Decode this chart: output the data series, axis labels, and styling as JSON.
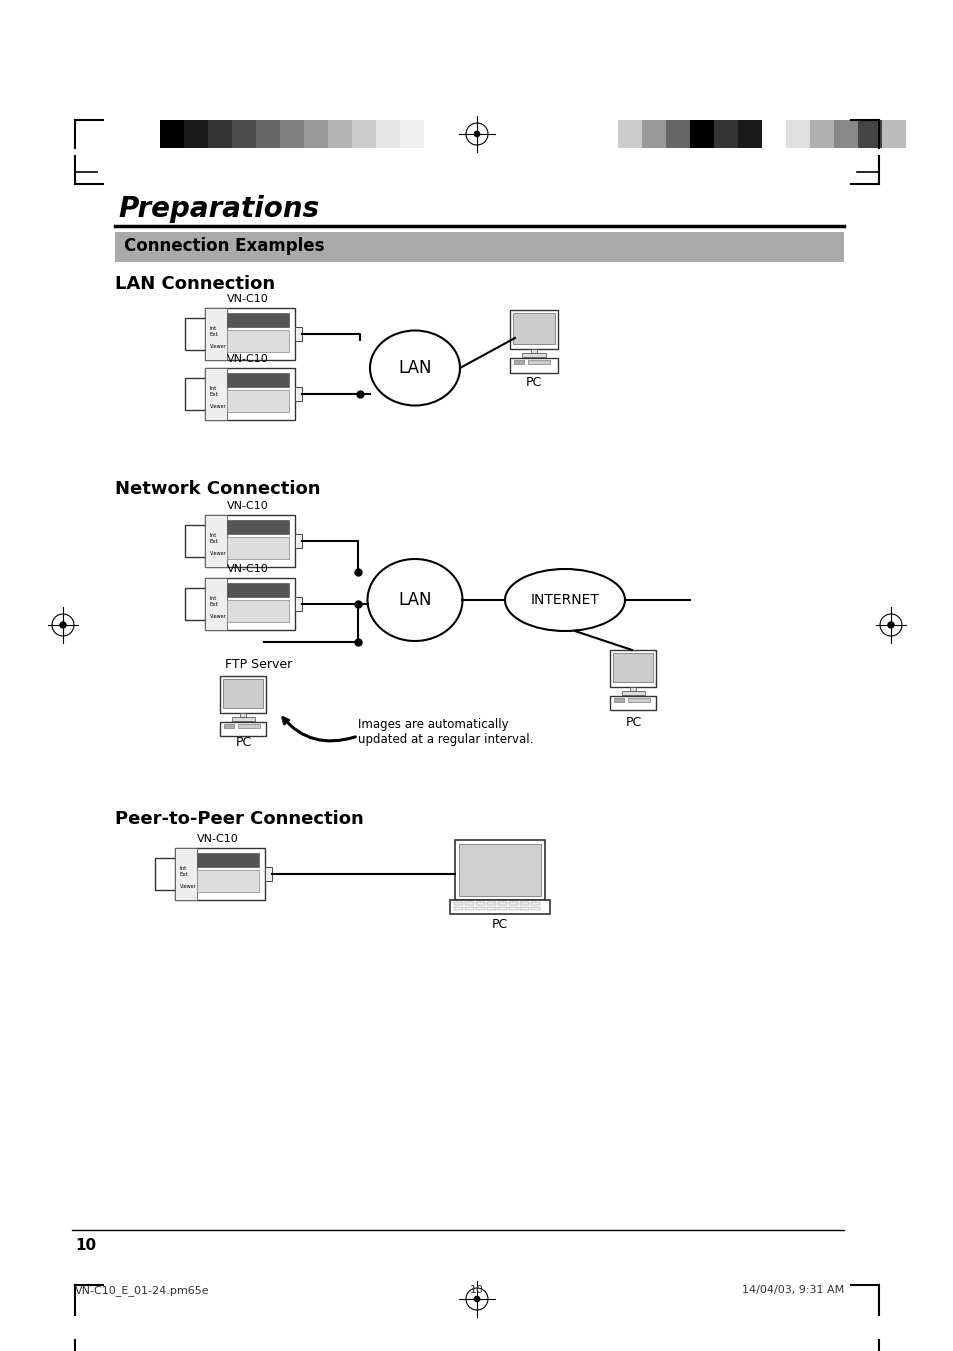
{
  "title": "Preparations",
  "subtitle": "Connection Examples",
  "section1": "LAN Connection",
  "section2": "Network Connection",
  "section3": "Peer-to-Peer Connection",
  "label_vnc10": "VN-C10",
  "label_lan": "LAN",
  "label_internet": "INTERNET",
  "label_pc": "PC",
  "label_ftp": "FTP Server",
  "label_caption": "Images are automatically\nupdated at a regular interval.",
  "bg_color": "#ffffff",
  "text_color": "#000000",
  "header_bg": "#aaaaaa",
  "header_text": "#000000",
  "page_number": "10",
  "footer_left": "VN-C10_E_01-24.pm65e",
  "footer_center": "10",
  "footer_right": "14/04/03, 9:31 AM",
  "colors_left": [
    "#000000",
    "#1a1a1a",
    "#333333",
    "#4d4d4d",
    "#666666",
    "#808080",
    "#999999",
    "#b3b3b3",
    "#cccccc",
    "#e6e6e6",
    "#f0f0f0",
    "#ffffff"
  ],
  "colors_right": [
    "#cccccc",
    "#999999",
    "#666666",
    "#000000",
    "#333333",
    "#1a1a1a",
    "#ffffff",
    "#e0e0e0",
    "#b0b0b0",
    "#888888",
    "#444444",
    "#bbbbbb"
  ]
}
